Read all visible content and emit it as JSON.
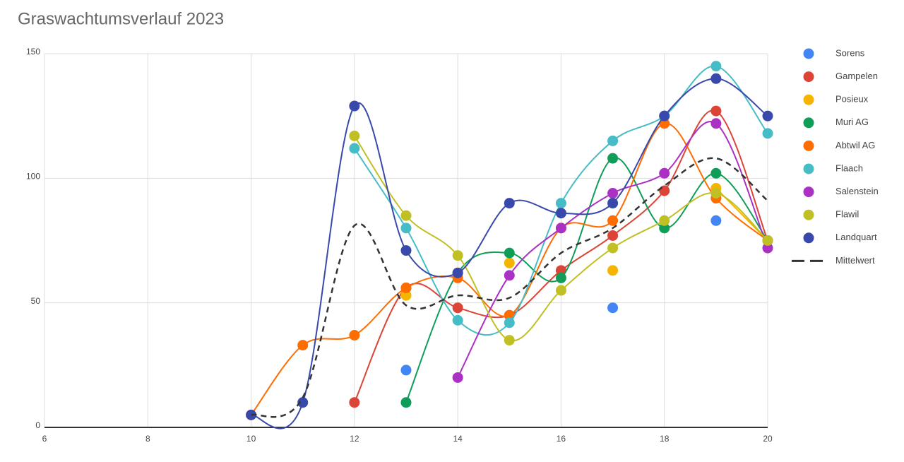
{
  "chart_data": {
    "type": "line",
    "title": "Graswachtumsverlauf 2023",
    "x": [
      10,
      11,
      12,
      13,
      14,
      15,
      16,
      17,
      18,
      19,
      20
    ],
    "xlim": [
      6,
      20
    ],
    "xticks": [
      6,
      8,
      10,
      12,
      14,
      16,
      18,
      20
    ],
    "ylim": [
      0,
      150
    ],
    "yticks": [
      0,
      50,
      100,
      150
    ],
    "grid": true,
    "smooth": true,
    "legend": "right",
    "series": [
      {
        "name": "Sorens",
        "color": "#4285f4",
        "values": [
          null,
          null,
          null,
          23,
          null,
          null,
          null,
          48,
          null,
          83,
          null
        ]
      },
      {
        "name": "Gampelen",
        "color": "#db4437",
        "values": [
          null,
          null,
          10,
          56,
          48,
          45,
          63,
          77,
          95,
          127,
          75
        ]
      },
      {
        "name": "Posieux",
        "color": "#f4b400",
        "values": [
          null,
          null,
          null,
          53,
          null,
          66,
          null,
          63,
          null,
          96,
          75
        ]
      },
      {
        "name": "Muri AG",
        "color": "#0f9d58",
        "values": [
          null,
          null,
          null,
          10,
          62,
          70,
          60,
          108,
          80,
          102,
          75
        ]
      },
      {
        "name": "Abtwil AG",
        "color": "#ff6d00",
        "values": [
          5,
          33,
          37,
          56,
          60,
          45,
          80,
          83,
          122,
          92,
          75
        ]
      },
      {
        "name": "Flaach",
        "color": "#46bdc6",
        "values": [
          null,
          null,
          112,
          80,
          43,
          42,
          90,
          115,
          125,
          145,
          118
        ]
      },
      {
        "name": "Salenstein",
        "color": "#ab30c4",
        "values": [
          null,
          null,
          null,
          null,
          20,
          61,
          80,
          94,
          102,
          122,
          72
        ]
      },
      {
        "name": "Flawil",
        "color": "#c0c025",
        "values": [
          null,
          null,
          117,
          85,
          69,
          35,
          55,
          72,
          83,
          94,
          75
        ]
      },
      {
        "name": "Landquart",
        "color": "#3949ab",
        "values": [
          5,
          10,
          129,
          71,
          62,
          90,
          86,
          90,
          125,
          140,
          125
        ]
      },
      {
        "name": "Mittelwert",
        "color": "#333333",
        "dashed": true,
        "markers": false,
        "values": [
          5,
          12,
          81,
          49,
          53,
          52,
          70,
          80,
          97,
          108,
          91
        ]
      }
    ]
  }
}
